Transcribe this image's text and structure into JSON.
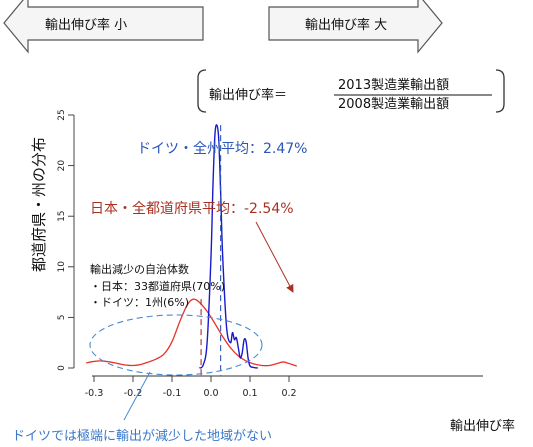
{
  "arrows": {
    "left_label": "輸出伸び率 小",
    "right_label": "輸出伸び率 大"
  },
  "formula": {
    "lhs": "輸出伸び率＝",
    "numerator": "2013製造業輸出額",
    "denominator": "2008製造業輸出額"
  },
  "annotations": {
    "germany_avg": "ドイツ・全州平均：2.47%",
    "japan_avg": "日本・全都道府県平均：-2.54%",
    "decline_title": "輸出減少の自治体数",
    "decline_japan": "・日本：33都道府県(70%)",
    "decline_germany": "・ドイツ：1州(6%)",
    "bottom_note": "ドイツでは極端に輸出が減少した地域がない"
  },
  "colors": {
    "germany": "#1a1acc",
    "japan": "#e8322a",
    "japan_annotation": "#a83222",
    "germany_annotation": "#2a56b8",
    "note": "#3a78c9",
    "ellipse": "#4a8ad0",
    "arrow_fill": "#f5f5f5"
  },
  "chart_data": {
    "type": "line",
    "title": "",
    "xlabel": "輸出伸び率",
    "ylabel": "都道府県・州の分布",
    "xlim": [
      -0.32,
      0.22
    ],
    "ylim": [
      0,
      25
    ],
    "xticks": [
      -0.3,
      -0.2,
      -0.1,
      0.0,
      0.1,
      0.2
    ],
    "xtick_labels": [
      "-0.3",
      "-0.2",
      "-0.1",
      "0.0",
      "0.1",
      "0.2"
    ],
    "yticks": [
      0,
      5,
      10,
      15,
      20,
      25
    ],
    "ytick_labels": [
      "0",
      "5",
      "10",
      "15",
      "20",
      "25"
    ],
    "grid": false,
    "series": [
      {
        "name": "日本",
        "color": "#e8322a",
        "mean": -0.0254,
        "x": [
          -0.32,
          -0.3,
          -0.28,
          -0.26,
          -0.24,
          -0.22,
          -0.2,
          -0.18,
          -0.16,
          -0.14,
          -0.12,
          -0.1,
          -0.08,
          -0.06,
          -0.045,
          -0.03,
          -0.01,
          0.01,
          0.03,
          0.05,
          0.07,
          0.09,
          0.11,
          0.13,
          0.15,
          0.17,
          0.185,
          0.2,
          0.22
        ],
        "y": [
          0.5,
          0.65,
          0.7,
          0.6,
          0.45,
          0.3,
          0.25,
          0.35,
          0.6,
          0.9,
          1.4,
          2.6,
          4.6,
          6.3,
          6.8,
          6.5,
          5.6,
          4.4,
          3.1,
          2.0,
          1.2,
          0.7,
          0.4,
          0.25,
          0.25,
          0.45,
          0.6,
          0.45,
          0.2
        ]
      },
      {
        "name": "ドイツ",
        "color": "#1a1acc",
        "mean": 0.0247,
        "x": [
          -0.03,
          -0.02,
          -0.01,
          0.0,
          0.005,
          0.01,
          0.015,
          0.02,
          0.025,
          0.03,
          0.04,
          0.05,
          0.055,
          0.06,
          0.065,
          0.07,
          0.075,
          0.08,
          0.085,
          0.09,
          0.095,
          0.1,
          0.11,
          0.12
        ],
        "y": [
          0.0,
          0.3,
          2.5,
          11.0,
          18.0,
          23.0,
          24.0,
          22.5,
          17.0,
          11.0,
          4.0,
          2.5,
          3.5,
          2.8,
          3.0,
          2.0,
          1.0,
          1.5,
          2.8,
          2.6,
          1.0,
          0.2,
          0.05,
          0.0
        ]
      }
    ]
  }
}
